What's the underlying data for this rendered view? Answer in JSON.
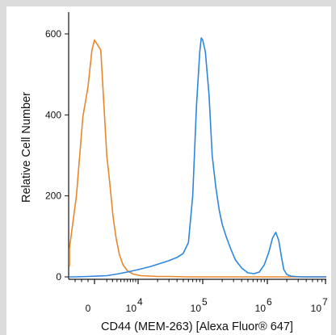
{
  "chart_data": {
    "type": "line",
    "title": "",
    "xlabel": "CD44 (MEM-263) [Alexa Fluor® 647]",
    "ylabel": "Relative Cell Number",
    "x_scale": "biexponential",
    "ylim": [
      0,
      640
    ],
    "y_ticks": [
      0,
      200,
      400,
      600
    ],
    "y_tick_labels": [
      "0",
      "200",
      "400",
      "600"
    ],
    "x_tick_labels": [
      {
        "base": "0",
        "exp": ""
      },
      {
        "base": "10",
        "exp": "4"
      },
      {
        "base": "10",
        "exp": "5"
      },
      {
        "base": "10",
        "exp": "6"
      },
      {
        "base": "10",
        "exp": "7"
      }
    ],
    "grid": false,
    "legend": "none",
    "series": [
      {
        "color": "#e8872a",
        "note_points": "x in fluorescence intensity, y in relative cell number",
        "x": [
          -5000,
          -3900,
          -2800,
          -1800,
          -1000,
          -400,
          0,
          300,
          600,
          1000,
          1500,
          2100,
          2800,
          3600,
          4600,
          6000,
          8000,
          11000,
          15000,
          20000,
          30000,
          60000,
          100000,
          300000,
          1000000,
          5000000,
          10000000
        ],
        "y": [
          25,
          70,
          200,
          395,
          470,
          560,
          585,
          560,
          430,
          300,
          230,
          150,
          95,
          55,
          30,
          15,
          7,
          3,
          2,
          1,
          1,
          0,
          0,
          0,
          0,
          0,
          0
        ]
      },
      {
        "color": "#2e86de",
        "x": [
          -5000,
          -3000,
          -1000,
          1000,
          3000,
          6000,
          10000,
          15000,
          22000,
          30000,
          40000,
          50000,
          60000,
          70000,
          80000,
          90000,
          95000,
          100000,
          110000,
          125000,
          140000,
          160000,
          180000,
          200000,
          230000,
          270000,
          320000,
          400000,
          500000,
          620000,
          750000,
          900000,
          1050000,
          1200000,
          1350000,
          1500000,
          1650000,
          1800000,
          2000000,
          2300000,
          2700000,
          3500000,
          5000000,
          10000000
        ],
        "y": [
          0,
          0,
          1,
          3,
          7,
          12,
          18,
          25,
          33,
          40,
          48,
          58,
          85,
          200,
          420,
          555,
          590,
          585,
          555,
          450,
          300,
          220,
          165,
          130,
          100,
          70,
          42,
          22,
          10,
          8,
          12,
          30,
          60,
          95,
          110,
          90,
          50,
          18,
          6,
          2,
          1,
          0,
          0,
          0
        ]
      }
    ]
  }
}
